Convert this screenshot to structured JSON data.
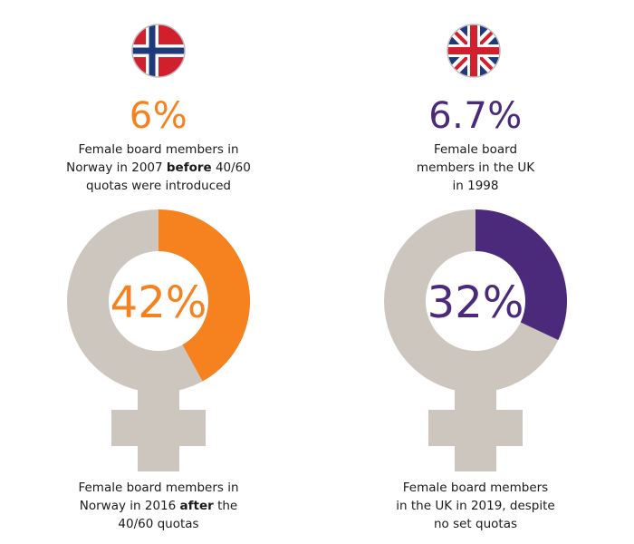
{
  "colors": {
    "norway_accent": "#f5821f",
    "uk_accent": "#4b2a7b",
    "ring_grey": "#cdc6bf",
    "text": "#1a1a1a"
  },
  "panels": [
    {
      "country_flag_icon": "norway-flag-icon",
      "top_stat": "6%",
      "top_caption": {
        "line1": "Female board members in",
        "line2_a": "Norway in 2007 ",
        "line2_bold": "before",
        "line2_b": " 40/60",
        "line3": "quotas were introduced"
      },
      "center_value": "42%",
      "bottom_caption": {
        "line1": "Female board members in",
        "line2_a": "Norway in 2016 ",
        "line2_bold": "after",
        "line2_b": " the",
        "line3": "40/60 quotas"
      }
    },
    {
      "country_flag_icon": "uk-flag-icon",
      "top_stat": "6.7%",
      "top_caption": {
        "line1": "Female board",
        "line2": "members in the UK",
        "line3": "in 1998"
      },
      "center_value": "32%",
      "bottom_caption": {
        "line1": "Female board members",
        "line2": "in the UK in 2019, despite",
        "line3": "no set quotas"
      }
    }
  ],
  "chart_data": [
    {
      "type": "pie",
      "variant": "donut",
      "label": "42%",
      "values": [
        42,
        58
      ],
      "colors": [
        "#f5821f",
        "#cdc6bf"
      ]
    },
    {
      "type": "pie",
      "variant": "donut",
      "label": "32%",
      "values": [
        32,
        68
      ],
      "colors": [
        "#4b2a7b",
        "#cdc6bf"
      ]
    }
  ]
}
